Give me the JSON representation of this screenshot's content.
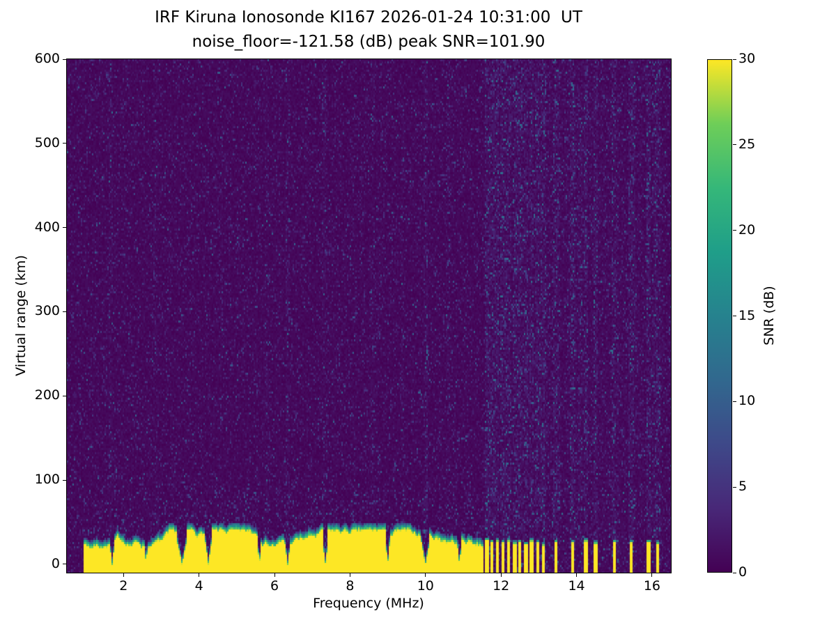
{
  "chart_data": {
    "type": "heatmap",
    "title": "IRF Kiruna Ionosonde KI167 2026-01-24 10:31:00  UT",
    "subtitle": "noise_floor=-121.58 (dB) peak SNR=101.90",
    "station": "IRF Kiruna Ionosonde KI167",
    "timestamp_ut": "2026-01-24 10:31:00",
    "noise_floor_db": -121.58,
    "peak_snr_db": 101.9,
    "xlabel": "Frequency (MHz)",
    "ylabel": "Virtual range (km)",
    "xlim": [
      0.5,
      16.5
    ],
    "ylim": [
      -10,
      600
    ],
    "xticks": [
      2,
      4,
      6,
      8,
      10,
      12,
      14,
      16
    ],
    "yticks": [
      0,
      100,
      200,
      300,
      400,
      500,
      600
    ],
    "grid": false,
    "colorbar": {
      "label": "SNR (dB)",
      "min": 0,
      "max": 30,
      "ticks": [
        0,
        5,
        10,
        15,
        20,
        25,
        30
      ],
      "colormap": "viridis",
      "stops": [
        [
          0.0,
          "#440154"
        ],
        [
          0.125,
          "#482878"
        ],
        [
          0.25,
          "#3e4989"
        ],
        [
          0.375,
          "#31688e"
        ],
        [
          0.5,
          "#26828e"
        ],
        [
          0.625,
          "#1f9e89"
        ],
        [
          0.75,
          "#35b779"
        ],
        [
          0.875,
          "#6ece58"
        ],
        [
          1.0,
          "#fde725"
        ]
      ]
    },
    "features": {
      "background": {
        "description": "dark purple noise floor near 0 dB with sparse blue/teal speckle up to ~10 dB",
        "dark_fraction": 0.8,
        "speckle_max_db": 10.5
      },
      "ground_echo": {
        "description": "saturated yellow echo band (>=30 dB SNR) at low virtual range across sounding sweep",
        "freq_range_mhz": [
          0.95,
          11.55
        ],
        "top_km_range": [
          25,
          47
        ],
        "snr_db": 30,
        "fringe_km": 9,
        "notches": [
          [
            1.7,
            0.07
          ],
          [
            2.6,
            0.05
          ],
          [
            3.55,
            0.12
          ],
          [
            4.25,
            0.08
          ],
          [
            5.6,
            0.05
          ],
          [
            6.35,
            0.08
          ],
          [
            7.35,
            0.07
          ],
          [
            9.0,
            0.05
          ],
          [
            10.0,
            0.11
          ],
          [
            10.9,
            0.06
          ]
        ]
      },
      "echo_bars": {
        "description": "intermittent narrow saturated columns at low range above 11.6 MHz",
        "width_mhz": 0.05,
        "bars": [
          [
            11.63,
            32
          ],
          [
            11.76,
            30
          ],
          [
            11.9,
            31
          ],
          [
            12.05,
            29
          ],
          [
            12.2,
            31
          ],
          [
            12.36,
            28
          ],
          [
            12.5,
            30
          ],
          [
            12.66,
            27
          ],
          [
            12.82,
            31
          ],
          [
            12.97,
            29
          ],
          [
            13.12,
            26
          ],
          [
            13.45,
            30
          ],
          [
            13.9,
            29
          ],
          [
            14.25,
            31
          ],
          [
            14.5,
            28
          ],
          [
            15.0,
            30
          ],
          [
            15.45,
            29
          ],
          [
            15.9,
            30
          ],
          [
            16.15,
            28
          ]
        ]
      },
      "rfi_stripes": [
        {
          "f": 1.65,
          "w": 0.05,
          "boost": 1.5
        },
        {
          "f": 2.85,
          "w": 0.05,
          "boost": 1.35
        },
        {
          "f": 4.6,
          "w": 0.05,
          "boost": 1.3
        },
        {
          "f": 5.8,
          "w": 0.05,
          "boost": 1.3
        },
        {
          "f": 6.35,
          "w": 0.06,
          "boost": 1.6
        },
        {
          "f": 7.3,
          "w": 0.05,
          "boost": 1.5
        },
        {
          "f": 8.6,
          "w": 0.05,
          "boost": 1.3
        },
        {
          "f": 9.4,
          "w": 0.05,
          "boost": 1.35
        },
        {
          "f": 10.0,
          "w": 0.06,
          "boost": 1.9
        },
        {
          "f": 10.6,
          "w": 0.05,
          "boost": 1.4
        },
        {
          "f": 12.6,
          "w": 0.06,
          "boost": 1.9
        },
        {
          "f": 13.05,
          "w": 0.06,
          "boost": 1.9
        },
        {
          "f": 13.5,
          "w": 0.06,
          "boost": 2.0
        },
        {
          "f": 14.1,
          "w": 0.06,
          "boost": 1.8
        },
        {
          "f": 14.5,
          "w": 0.06,
          "boost": 1.9
        },
        {
          "f": 15.05,
          "w": 0.06,
          "boost": 1.8
        },
        {
          "f": 15.5,
          "w": 0.06,
          "boost": 1.9
        },
        {
          "f": 16.05,
          "w": 0.06,
          "boost": 1.8
        }
      ],
      "high_band_noise": {
        "freq_above_mhz": 11.58,
        "base_boost": 1.25
      }
    }
  }
}
